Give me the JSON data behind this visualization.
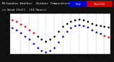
{
  "title_line1": "Milwaukee Weather  Outdoor Temperature",
  "title_line2": "vs Wind Chill  (24 Hours)",
  "bg_color": "#111111",
  "plot_bg": "#ffffff",
  "hours": [
    1,
    2,
    3,
    4,
    5,
    6,
    7,
    8,
    9,
    10,
    11,
    12,
    13,
    14,
    15,
    16,
    17,
    18,
    19,
    20,
    21,
    22,
    23,
    24
  ],
  "temp_values": [
    52,
    50,
    47,
    44,
    40,
    36,
    32,
    28,
    26,
    28,
    32,
    38,
    44,
    48,
    50,
    52,
    53,
    52,
    50,
    48,
    46,
    45,
    44,
    43
  ],
  "wind_chill": [
    42,
    40,
    36,
    32,
    28,
    23,
    18,
    14,
    12,
    14,
    18,
    25,
    32,
    38,
    42,
    45,
    46,
    45,
    43,
    40,
    37,
    35,
    33,
    31
  ],
  "temp_dot_color": "#000000",
  "temp_red_indices": [
    0,
    1,
    2,
    3,
    4,
    5
  ],
  "temp_red_color": "#ff0000",
  "chill_color": "#0000ff",
  "chill_red_indices": [
    22,
    23
  ],
  "chill_red_color": "#ff0000",
  "legend_blue_color": "#0000cc",
  "legend_red_color": "#cc0000",
  "ylim": [
    10,
    60
  ],
  "yticks": [
    10,
    20,
    30,
    40,
    50,
    60
  ],
  "grid_hours": [
    3,
    5,
    7,
    9,
    11,
    13,
    15,
    17,
    19,
    21,
    23
  ],
  "xtick_labels": [
    "1",
    "",
    "3",
    "",
    "5",
    "",
    "7",
    "",
    "9",
    "",
    "11",
    "",
    "13",
    "",
    "15",
    "",
    "17",
    "",
    "19",
    "",
    "21",
    "",
    "23",
    ""
  ]
}
